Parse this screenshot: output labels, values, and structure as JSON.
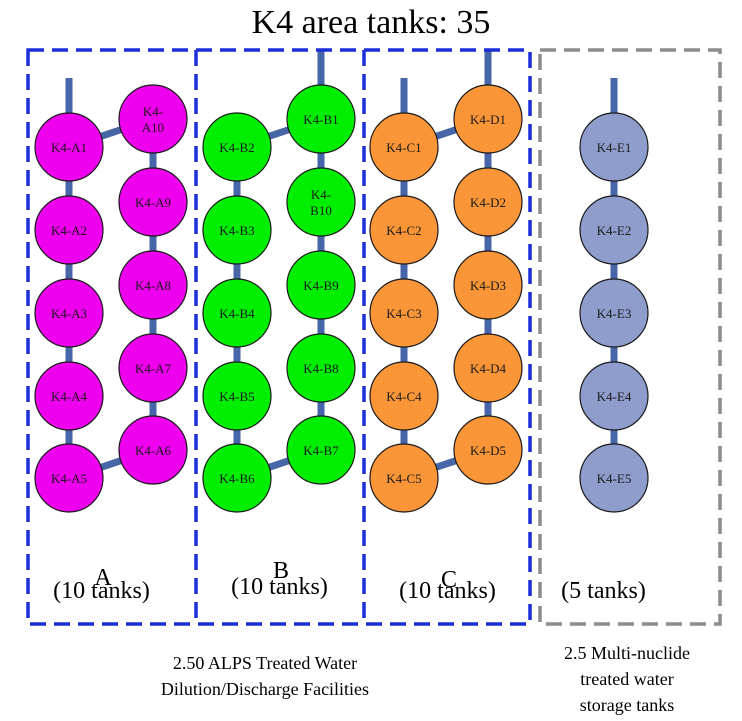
{
  "title": "K4 area tanks: 35",
  "colors": {
    "group_A": "#ee00ee",
    "group_B": "#00ee00",
    "group_C": "#fb9638",
    "group_E": "#8e9dcc",
    "pipe": "#4766a8",
    "box_blue": "#1b2fd8",
    "box_gray": "#8c8c8c"
  },
  "groups": [
    {
      "letter": "A",
      "count": "(10 tanks)"
    },
    {
      "letter": "B",
      "count": "(10 tanks)"
    },
    {
      "letter": "C",
      "count": "(10 tanks)"
    },
    {
      "letter": "",
      "count": "(5 tanks)"
    }
  ],
  "tanks": {
    "A_left": [
      "K4-A1",
      "K4-A2",
      "K4-A3",
      "K4-A4",
      "K4-A5"
    ],
    "A_right": [
      "K4-\nA10",
      "K4-A9",
      "K4-A8",
      "K4-A7",
      "K4-A6"
    ],
    "B_left": [
      "K4-B2",
      "K4-B3",
      "K4-B4",
      "K4-B5",
      "K4-B6"
    ],
    "B_right": [
      "K4-B1",
      "K4-\nB10",
      "K4-B9",
      "K4-B8",
      "K4-B7"
    ],
    "C_left": [
      "K4-C1",
      "K4-C2",
      "K4-C3",
      "K4-C4",
      "K4-C5"
    ],
    "C_right": [
      "K4-D1",
      "K4-D2",
      "K4-D3",
      "K4-D4",
      "K4-D5"
    ],
    "E": [
      "K4-E1",
      "K4-E2",
      "K4-E3",
      "K4-E4",
      "K4-E5"
    ]
  },
  "captions": {
    "alps_line1": "2.50 ALPS Treated Water",
    "alps_line2": "Dilution/Discharge Facilities",
    "storage_line1": "2.5 Multi-nuclide",
    "storage_line2": "treated water",
    "storage_line3": "storage tanks"
  }
}
